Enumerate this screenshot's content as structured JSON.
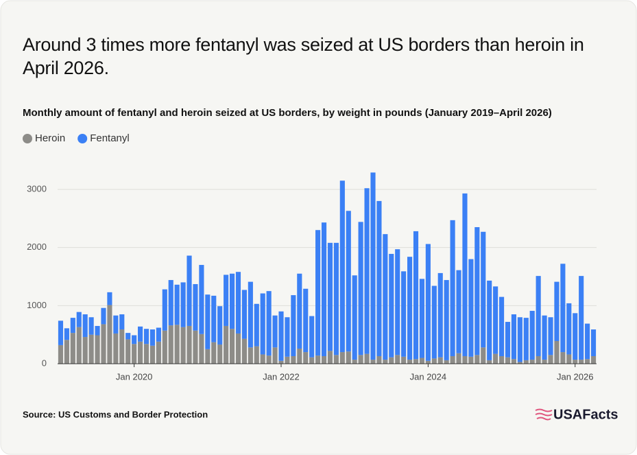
{
  "chart_data": {
    "type": "stacked-bar",
    "title": "Around 3 times more fentanyl was seized at US borders than heroin in April 2026.",
    "subtitle": "Monthly amount of fentanyl and heroin seized at US borders, by weight in pounds (January 2019–April 2026)",
    "source": "Source: US Customs and Border Protection",
    "logo": "USAFacts",
    "categories": [
      null,
      null,
      null,
      null,
      null,
      null,
      null,
      null,
      null,
      null,
      null,
      null,
      "Jan 2020",
      null,
      null,
      null,
      null,
      null,
      null,
      null,
      null,
      null,
      null,
      null,
      null,
      null,
      null,
      null,
      null,
      null,
      null,
      null,
      null,
      null,
      null,
      null,
      "Jan 2022",
      null,
      null,
      null,
      null,
      null,
      null,
      null,
      null,
      null,
      null,
      null,
      null,
      null,
      null,
      null,
      null,
      null,
      null,
      null,
      null,
      null,
      null,
      null,
      "Jan 2024",
      null,
      null,
      null,
      null,
      null,
      null,
      null,
      null,
      null,
      null,
      null,
      null,
      null,
      null,
      null,
      null,
      null,
      null,
      null,
      null,
      null,
      null,
      null,
      "Jan 2026",
      null,
      null,
      null
    ],
    "series": [
      {
        "name": "Heroin",
        "color": "#8d8c88",
        "values": [
          320,
          410,
          530,
          630,
          460,
          500,
          490,
          680,
          1010,
          520,
          590,
          420,
          340,
          380,
          340,
          310,
          380,
          570,
          660,
          670,
          630,
          650,
          570,
          510,
          250,
          370,
          330,
          650,
          600,
          520,
          430,
          280,
          300,
          160,
          140,
          280,
          50,
          120,
          130,
          260,
          200,
          110,
          140,
          130,
          220,
          150,
          200,
          210,
          70,
          150,
          170,
          70,
          130,
          70,
          110,
          150,
          120,
          70,
          80,
          100,
          50,
          90,
          110,
          60,
          130,
          180,
          130,
          120,
          150,
          280,
          60,
          170,
          130,
          110,
          80,
          30,
          60,
          70,
          130,
          70,
          150,
          390,
          200,
          160,
          70,
          70,
          80,
          130
        ]
      },
      {
        "name": "Fentanyl",
        "color": "#3b80f5",
        "values": [
          420,
          200,
          260,
          260,
          390,
          300,
          160,
          280,
          220,
          310,
          260,
          110,
          150,
          260,
          260,
          280,
          240,
          710,
          780,
          690,
          770,
          1210,
          800,
          1190,
          940,
          800,
          660,
          880,
          950,
          1060,
          840,
          1130,
          730,
          1050,
          1110,
          550,
          850,
          680,
          1050,
          1290,
          1090,
          710,
          2160,
          2300,
          1860,
          1930,
          2950,
          2420,
          1450,
          2290,
          2850,
          3220,
          2670,
          2160,
          1780,
          1820,
          1470,
          1770,
          2200,
          1360,
          2010,
          1250,
          1450,
          1380,
          2340,
          1430,
          2800,
          1680,
          2200,
          1990,
          1370,
          1160,
          1020,
          610,
          770,
          770,
          730,
          840,
          1380,
          760,
          650,
          1020,
          1520,
          880,
          800,
          1440,
          610,
          460
        ]
      }
    ],
    "ylim": [
      0,
      3500
    ],
    "yticks": [
      0,
      1000,
      2000,
      3000
    ],
    "grid": true
  }
}
